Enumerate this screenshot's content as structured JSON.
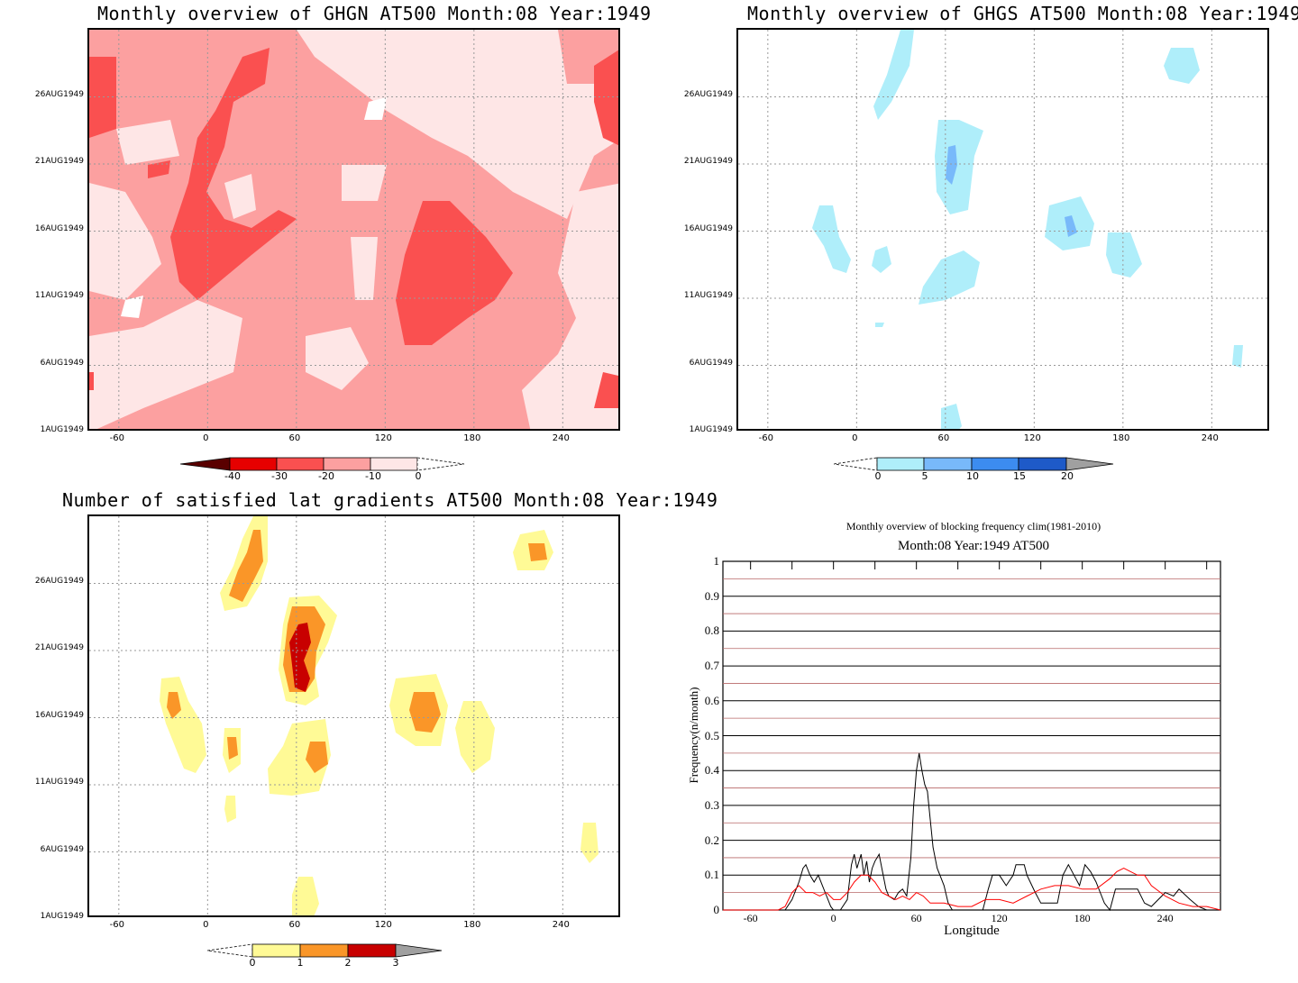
{
  "chart_data": [
    {
      "type": "heatmap",
      "title": "Monthly overview of GHGN AT500 Month:08 Year:1949",
      "x_ticks": [
        "-60",
        "0",
        "60",
        "120",
        "180",
        "240"
      ],
      "x_values": [
        -60,
        0,
        60,
        120,
        180,
        240
      ],
      "xlim": [
        -80,
        280
      ],
      "y_ticks": [
        "1AUG1949",
        "6AUG1949",
        "11AUG1949",
        "16AUG1949",
        "21AUG1949",
        "26AUG1949"
      ],
      "y_values": [
        1,
        6,
        11,
        16,
        21,
        26
      ],
      "ylim": [
        1,
        31
      ],
      "colorbar": {
        "labels": [
          "-40",
          "-30",
          "-20",
          "-10",
          "0"
        ],
        "colors": [
          "#5a0000",
          "#e60000",
          "#fa5050",
          "#fca0a0",
          "#fee6e6",
          "#ffffff"
        ]
      }
    },
    {
      "type": "heatmap",
      "title": "Monthly overview of GHGS AT500 Month:08 Year:1949",
      "x_ticks": [
        "-60",
        "0",
        "60",
        "120",
        "180",
        "240"
      ],
      "x_values": [
        -60,
        0,
        60,
        120,
        180,
        240
      ],
      "xlim": [
        -80,
        280
      ],
      "y_ticks": [
        "1AUG1949",
        "6AUG1949",
        "11AUG1949",
        "16AUG1949",
        "21AUG1949",
        "26AUG1949"
      ],
      "y_values": [
        1,
        6,
        11,
        16,
        21,
        26
      ],
      "ylim": [
        1,
        31
      ],
      "colorbar": {
        "labels": [
          "0",
          "5",
          "10",
          "15",
          "20"
        ],
        "colors": [
          "#ffffff",
          "#afeefa",
          "#78b9fa",
          "#3c8cf0",
          "#1e5ac8",
          "#a0a0a0"
        ]
      }
    },
    {
      "type": "heatmap",
      "title": "Number of satisfied lat gradients AT500 Month:08 Year:1949",
      "x_ticks": [
        "-60",
        "0",
        "60",
        "120",
        "180",
        "240"
      ],
      "x_values": [
        -60,
        0,
        60,
        120,
        180,
        240
      ],
      "xlim": [
        -80,
        280
      ],
      "y_ticks": [
        "1AUG1949",
        "6AUG1949",
        "11AUG1949",
        "16AUG1949",
        "21AUG1949",
        "26AUG1949"
      ],
      "y_values": [
        1,
        6,
        11,
        16,
        21,
        26
      ],
      "ylim": [
        1,
        31
      ],
      "colorbar": {
        "labels": [
          "0",
          "1",
          "2",
          "3"
        ],
        "colors": [
          "#ffffff",
          "#fffa96",
          "#fa9628",
          "#c80000",
          "#a0a0a0"
        ]
      }
    },
    {
      "type": "line",
      "title": "Monthly overview of blocking frequency clim(1981-2010)",
      "subtitle": "Month:08 Year:1949  AT500",
      "xlabel": "Longitude",
      "ylabel": "Frequency(n/month)",
      "xlim": [
        -80,
        280
      ],
      "ylim": [
        0,
        1
      ],
      "x_ticks": [
        "-60",
        "0",
        "60",
        "120",
        "180",
        "240"
      ],
      "x_tick_values": [
        -60,
        0,
        60,
        120,
        180,
        240
      ],
      "y_ticks": [
        "0",
        "0.1",
        "0.2",
        "0.3",
        "0.4",
        "0.5",
        "0.6",
        "0.7",
        "0.8",
        "0.9",
        "1"
      ],
      "grid": true,
      "series": [
        {
          "color": "#000000",
          "x": [
            -80,
            -35,
            -30,
            -25,
            -22,
            -20,
            -17,
            -14,
            -11,
            -8,
            -5,
            -2,
            0,
            5,
            10,
            13,
            15,
            17,
            20,
            22,
            24,
            26,
            28,
            30,
            33,
            35,
            38,
            40,
            44,
            47,
            50,
            53,
            56,
            58,
            60,
            62,
            64,
            66,
            68,
            70,
            72,
            75,
            78,
            80,
            83,
            86,
            90,
            95,
            100,
            108,
            112,
            115,
            120,
            125,
            130,
            132,
            134,
            138,
            140,
            146,
            150,
            155,
            162,
            166,
            170,
            174,
            178,
            182,
            186,
            190,
            196,
            200,
            204,
            210,
            220,
            225,
            230,
            240,
            246,
            250,
            258,
            264,
            270,
            280
          ],
          "y": [
            0,
            0,
            0.03,
            0.08,
            0.12,
            0.13,
            0.1,
            0.08,
            0.1,
            0.07,
            0.04,
            0.01,
            0,
            0,
            0.03,
            0.13,
            0.16,
            0.12,
            0.16,
            0.1,
            0.14,
            0.08,
            0.12,
            0.14,
            0.16,
            0.12,
            0.06,
            0.04,
            0.03,
            0.05,
            0.06,
            0.04,
            0.15,
            0.3,
            0.4,
            0.45,
            0.4,
            0.36,
            0.34,
            0.26,
            0.18,
            0.12,
            0.09,
            0.07,
            0.02,
            0,
            0,
            0,
            0,
            0,
            0.06,
            0.1,
            0.1,
            0.07,
            0.1,
            0.13,
            0.13,
            0.13,
            0.1,
            0.05,
            0.02,
            0.02,
            0.02,
            0.1,
            0.13,
            0.1,
            0.07,
            0.13,
            0.11,
            0.08,
            0.02,
            0,
            0.06,
            0.06,
            0.06,
            0.02,
            0.01,
            0.05,
            0.04,
            0.06,
            0.03,
            0.01,
            0,
            0
          ]
        },
        {
          "color": "#ff0000",
          "x": [
            -80,
            -40,
            -35,
            -30,
            -25,
            -20,
            -15,
            -10,
            -5,
            0,
            5,
            10,
            15,
            20,
            25,
            30,
            35,
            40,
            45,
            50,
            55,
            60,
            65,
            70,
            75,
            80,
            90,
            100,
            110,
            120,
            130,
            140,
            150,
            160,
            170,
            180,
            190,
            200,
            205,
            210,
            215,
            220,
            225,
            230,
            240,
            250,
            260,
            270,
            280
          ],
          "y": [
            0,
            0,
            0.01,
            0.05,
            0.07,
            0.05,
            0.05,
            0.04,
            0.05,
            0.03,
            0.03,
            0.05,
            0.08,
            0.1,
            0.1,
            0.08,
            0.05,
            0.04,
            0.03,
            0.04,
            0.03,
            0.05,
            0.04,
            0.02,
            0.02,
            0.02,
            0.01,
            0.01,
            0.03,
            0.03,
            0.02,
            0.04,
            0.06,
            0.07,
            0.07,
            0.06,
            0.06,
            0.09,
            0.11,
            0.12,
            0.11,
            0.1,
            0.1,
            0.07,
            0.04,
            0.02,
            0.01,
            0.01,
            0
          ]
        }
      ]
    }
  ]
}
